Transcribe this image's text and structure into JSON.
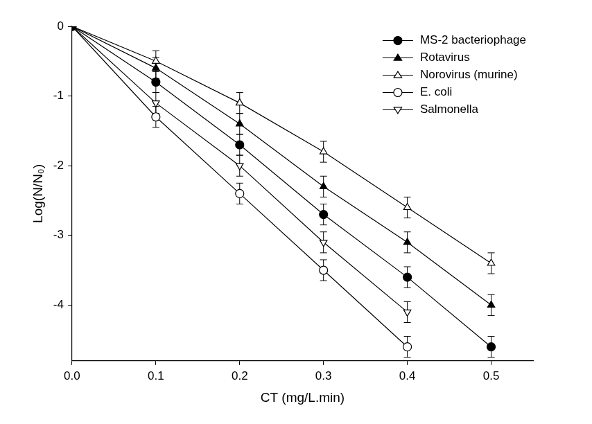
{
  "chart_data": {
    "type": "line",
    "x_label": "CT (mg/L.min)",
    "y_label": "Log(N/N₀)",
    "x": [
      0,
      0.1,
      0.2,
      0.3,
      0.4,
      0.5
    ],
    "series": [
      {
        "name": "MS-2 bacteriophage",
        "color": "#000000",
        "marker": "circle",
        "line_style": "solid",
        "values": [
          0,
          -0.8,
          -1.7,
          -2.7,
          -3.6,
          -4.6
        ],
        "errors": [
          0,
          0.15,
          0.15,
          0.15,
          0.15,
          0.15
        ]
      },
      {
        "name": "Rotavirus",
        "color": "#000000",
        "marker": "triangle",
        "line_style": "solid",
        "values": [
          0,
          -0.6,
          -1.4,
          -2.3,
          -3.1,
          -4.0
        ],
        "errors": [
          0,
          0.15,
          0.15,
          0.15,
          0.15,
          0.15
        ]
      },
      {
        "name": "Norovirus (murine)",
        "color": "#000000",
        "marker": "triangle-open",
        "line_style": "solid",
        "values": [
          0,
          -0.5,
          -1.1,
          -1.8,
          -2.6,
          -3.4
        ],
        "errors": [
          0,
          0.15,
          0.15,
          0.15,
          0.15,
          0.15
        ]
      },
      {
        "name": "E. coli",
        "color": "#000000",
        "marker": "circle-open",
        "line_style": "solid",
        "values": [
          0,
          -1.3,
          -2.4,
          -3.5,
          -4.6,
          null
        ],
        "errors": [
          0,
          0.15,
          0.15,
          0.15,
          0.15,
          null
        ]
      },
      {
        "name": "Salmonella",
        "color": "#000000",
        "marker": "triangle-down-open",
        "line_style": "solid",
        "values": [
          0,
          -1.1,
          -2.0,
          -3.1,
          -4.1,
          null
        ],
        "errors": [
          0,
          0.15,
          0.15,
          0.15,
          0.15,
          null
        ]
      }
    ],
    "xlim": [
      0,
      0.55
    ],
    "xticks": [
      {
        "value": 0,
        "label": "0.0"
      },
      0.1,
      0.2,
      0.3,
      0.4,
      0.5
    ],
    "ylim": [
      -4.8,
      0
    ],
    "yticks": [
      0,
      -1,
      -2,
      -3,
      -4
    ],
    "grid": false,
    "legend": "upper right"
  }
}
